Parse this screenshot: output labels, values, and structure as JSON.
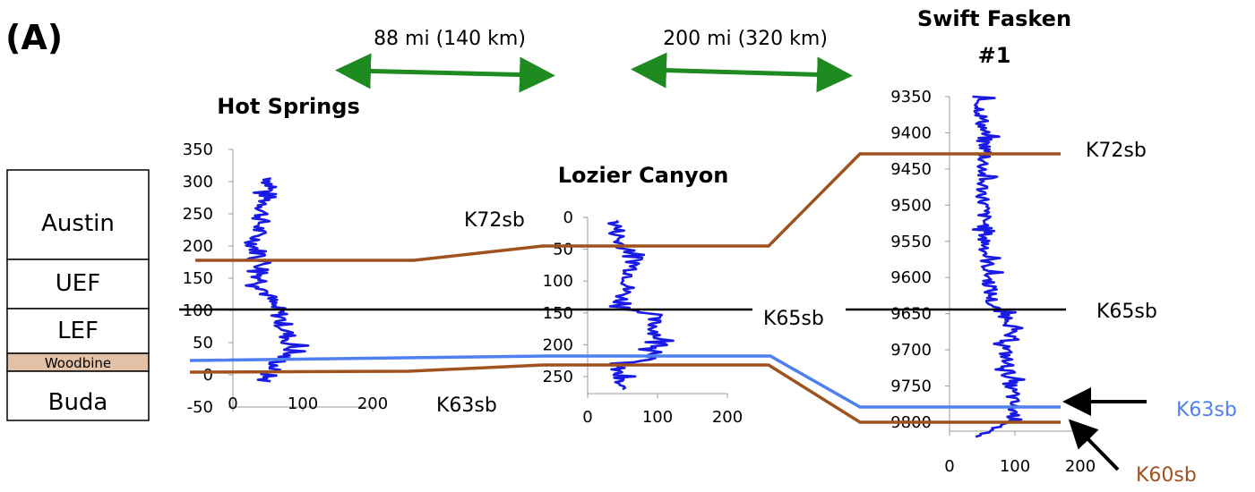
{
  "panel_label": "(A)",
  "distances": {
    "left": "88 mi (140 km)",
    "right": "200 mi (320 km)"
  },
  "colors": {
    "log_trace": "#1a1ae6",
    "surface_brown": "#a0521e",
    "k65_black": "#000000",
    "k63_blue": "#4f7ff0",
    "arrow_green": "#1f8a1f",
    "woodbine_fill": "#e3c1a7",
    "k63_label": "#4f7ff0",
    "k60_label": "#a0521e"
  },
  "strat_column": {
    "units": [
      "Austin",
      "UEF",
      "LEF",
      "Woodbine",
      "Buda"
    ]
  },
  "surfaces": {
    "k72": "K72sb",
    "k65": "K65sb",
    "k63": "K63sb",
    "k60": "K60sb"
  },
  "chart_data": [
    {
      "type": "line",
      "title": "Hot Springs",
      "y_ticks": [
        350,
        300,
        250,
        200,
        150,
        100,
        50,
        0,
        -50
      ],
      "x_ticks": [
        0,
        100,
        200
      ],
      "ylim": [
        -50,
        350
      ],
      "xlim": [
        0,
        200
      ],
      "log_range": [
        -10,
        305
      ]
    },
    {
      "type": "line",
      "title": "Lozier Canyon",
      "y_ticks": [
        0,
        50,
        100,
        150,
        200,
        250
      ],
      "x_ticks": [
        0,
        100,
        200
      ],
      "ylim": [
        0,
        280
      ],
      "xlim": [
        0,
        200
      ],
      "log_range": [
        5,
        270
      ]
    },
    {
      "type": "line",
      "title": "Swift Fasken #1",
      "y_ticks": [
        9350,
        9400,
        9450,
        9500,
        9550,
        9600,
        9650,
        9700,
        9750,
        9800
      ],
      "x_ticks": [
        0,
        100,
        200
      ],
      "ylim": [
        9350,
        9820
      ],
      "xlim": [
        0,
        200
      ],
      "log_range": [
        9350,
        9820
      ]
    }
  ]
}
